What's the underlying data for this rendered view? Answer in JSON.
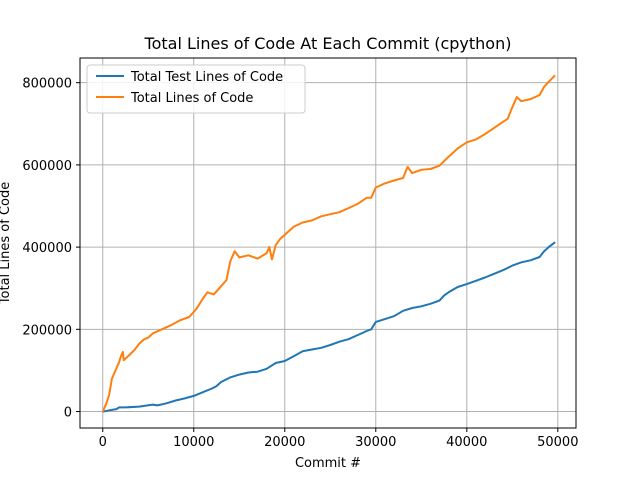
{
  "chart_data": {
    "type": "line",
    "title": "Total Lines of Code At Each Commit (cpython)",
    "xlabel": "Commit #",
    "ylabel": "Total Lines of Code",
    "xlim": [
      -2500,
      52000
    ],
    "ylim": [
      -40000,
      860000
    ],
    "xticks": [
      0,
      10000,
      20000,
      30000,
      40000,
      50000
    ],
    "xtick_labels": [
      "0",
      "10000",
      "20000",
      "30000",
      "40000",
      "50000"
    ],
    "yticks": [
      0,
      200000,
      400000,
      600000,
      800000
    ],
    "ytick_labels": [
      "0",
      "200000",
      "400000",
      "600000",
      "800000"
    ],
    "grid": true,
    "legend_position": "top-left",
    "series": [
      {
        "name": "Total Test Lines of Code",
        "color": "#1f77b4",
        "points": [
          [
            0,
            0
          ],
          [
            500,
            2000
          ],
          [
            1000,
            4000
          ],
          [
            1500,
            6000
          ],
          [
            1800,
            10000
          ],
          [
            2500,
            10000
          ],
          [
            4000,
            12000
          ],
          [
            5500,
            17000
          ],
          [
            6000,
            15000
          ],
          [
            7000,
            20000
          ],
          [
            8000,
            27000
          ],
          [
            9000,
            32000
          ],
          [
            10000,
            38000
          ],
          [
            11000,
            47000
          ],
          [
            12000,
            56000
          ],
          [
            12500,
            62000
          ],
          [
            13000,
            72000
          ],
          [
            14000,
            83000
          ],
          [
            15000,
            90000
          ],
          [
            16000,
            95000
          ],
          [
            17000,
            97000
          ],
          [
            18000,
            104000
          ],
          [
            19000,
            118000
          ],
          [
            20000,
            123000
          ],
          [
            21000,
            135000
          ],
          [
            22000,
            147000
          ],
          [
            23000,
            151000
          ],
          [
            24000,
            155000
          ],
          [
            25000,
            162000
          ],
          [
            26000,
            170000
          ],
          [
            27000,
            176000
          ],
          [
            28000,
            186000
          ],
          [
            29000,
            196000
          ],
          [
            29500,
            200000
          ],
          [
            30000,
            218000
          ],
          [
            31000,
            225000
          ],
          [
            32000,
            232000
          ],
          [
            33000,
            245000
          ],
          [
            34000,
            252000
          ],
          [
            35000,
            256000
          ],
          [
            36000,
            262000
          ],
          [
            37000,
            270000
          ],
          [
            37500,
            282000
          ],
          [
            38000,
            290000
          ],
          [
            39000,
            303000
          ],
          [
            40000,
            310000
          ],
          [
            41000,
            318000
          ],
          [
            42000,
            326000
          ],
          [
            43000,
            335000
          ],
          [
            44000,
            344000
          ],
          [
            45000,
            355000
          ],
          [
            46000,
            363000
          ],
          [
            47000,
            368000
          ],
          [
            48000,
            376000
          ],
          [
            48500,
            390000
          ],
          [
            49000,
            400000
          ],
          [
            49700,
            412000
          ]
        ]
      },
      {
        "name": "Total Lines of Code",
        "color": "#ff7f0e",
        "points": [
          [
            0,
            0
          ],
          [
            400,
            20000
          ],
          [
            700,
            40000
          ],
          [
            1000,
            80000
          ],
          [
            1300,
            95000
          ],
          [
            1600,
            110000
          ],
          [
            1800,
            120000
          ],
          [
            2000,
            135000
          ],
          [
            2200,
            145000
          ],
          [
            2300,
            125000
          ],
          [
            2800,
            135000
          ],
          [
            3500,
            150000
          ],
          [
            4000,
            165000
          ],
          [
            4500,
            175000
          ],
          [
            5000,
            180000
          ],
          [
            5500,
            190000
          ],
          [
            6500,
            200000
          ],
          [
            7500,
            210000
          ],
          [
            8500,
            222000
          ],
          [
            9500,
            230000
          ],
          [
            10300,
            250000
          ],
          [
            11000,
            275000
          ],
          [
            11500,
            290000
          ],
          [
            12200,
            285000
          ],
          [
            13000,
            305000
          ],
          [
            13600,
            320000
          ],
          [
            14000,
            365000
          ],
          [
            14500,
            390000
          ],
          [
            15000,
            375000
          ],
          [
            16000,
            380000
          ],
          [
            17000,
            372000
          ],
          [
            18000,
            385000
          ],
          [
            18300,
            400000
          ],
          [
            18600,
            370000
          ],
          [
            19000,
            405000
          ],
          [
            19500,
            420000
          ],
          [
            20000,
            430000
          ],
          [
            21000,
            450000
          ],
          [
            22000,
            460000
          ],
          [
            23000,
            465000
          ],
          [
            24000,
            475000
          ],
          [
            25000,
            480000
          ],
          [
            26000,
            485000
          ],
          [
            27000,
            495000
          ],
          [
            28000,
            505000
          ],
          [
            29000,
            520000
          ],
          [
            29500,
            520000
          ],
          [
            30000,
            545000
          ],
          [
            31000,
            555000
          ],
          [
            32000,
            562000
          ],
          [
            33000,
            568000
          ],
          [
            33500,
            595000
          ],
          [
            34000,
            580000
          ],
          [
            35000,
            588000
          ],
          [
            36000,
            590000
          ],
          [
            37000,
            598000
          ],
          [
            38000,
            620000
          ],
          [
            39000,
            640000
          ],
          [
            40000,
            655000
          ],
          [
            41000,
            662000
          ],
          [
            42000,
            675000
          ],
          [
            43000,
            690000
          ],
          [
            44000,
            705000
          ],
          [
            44500,
            712000
          ],
          [
            45000,
            740000
          ],
          [
            45500,
            765000
          ],
          [
            46000,
            755000
          ],
          [
            47000,
            760000
          ],
          [
            48000,
            770000
          ],
          [
            48500,
            790000
          ],
          [
            49000,
            802000
          ],
          [
            49700,
            818000
          ]
        ]
      }
    ]
  }
}
